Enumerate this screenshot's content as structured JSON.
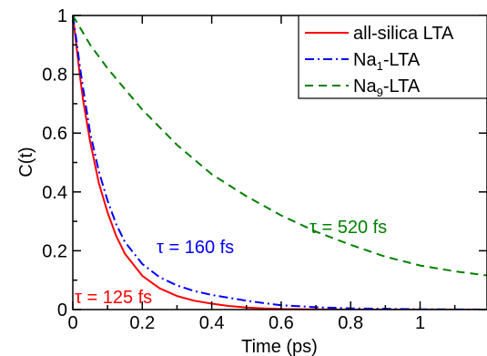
{
  "chart_data": {
    "type": "line",
    "xlabel": "Time (ps)",
    "ylabel": "C(t)",
    "xlim": [
      0,
      1.2
    ],
    "ylim": [
      0,
      1
    ],
    "xticks": [
      0,
      0.2,
      0.4,
      0.6,
      0.8,
      1
    ],
    "xtick_labels": [
      "0",
      "0.2",
      "0.4",
      "0.6",
      "0.8",
      "1"
    ],
    "yticks": [
      0,
      0.2,
      0.4,
      0.6,
      0.8,
      1
    ],
    "ytick_labels": [
      "0",
      "0.2",
      "0.4",
      "0.6",
      "0.8",
      "1"
    ],
    "grid": false,
    "legend_position": "top-right",
    "series": [
      {
        "name": "all-silica LTA",
        "legend_base": "all-silica LTA",
        "legend_sub": "",
        "legend_suffix": "",
        "color": "#ff0000",
        "dash": "solid",
        "annotation": "τ = 125 fs",
        "x": [
          0,
          0.01,
          0.02,
          0.03,
          0.05,
          0.075,
          0.1,
          0.125,
          0.15,
          0.2,
          0.25,
          0.3,
          0.35,
          0.4,
          0.45,
          0.5,
          0.55,
          0.6,
          0.7,
          0.8,
          1.0,
          1.2
        ],
        "y": [
          1.0,
          0.9,
          0.8,
          0.71,
          0.57,
          0.43,
          0.33,
          0.25,
          0.19,
          0.115,
          0.072,
          0.046,
          0.03,
          0.02,
          0.012,
          0.007,
          0.004,
          0.002,
          0.001,
          0.0,
          0.0,
          0.0
        ]
      },
      {
        "name": "Na1-LTA",
        "legend_base": "Na",
        "legend_sub": "1",
        "legend_suffix": "-LTA",
        "color": "#0000ff",
        "dash": "dashdot",
        "annotation": "τ = 160 fs",
        "x": [
          0,
          0.01,
          0.02,
          0.03,
          0.05,
          0.075,
          0.1,
          0.125,
          0.15,
          0.2,
          0.25,
          0.3,
          0.35,
          0.4,
          0.45,
          0.5,
          0.55,
          0.6,
          0.7,
          0.8,
          1.0,
          1.2
        ],
        "y": [
          1.0,
          0.92,
          0.83,
          0.75,
          0.6,
          0.47,
          0.37,
          0.29,
          0.23,
          0.155,
          0.11,
          0.082,
          0.063,
          0.05,
          0.04,
          0.03,
          0.022,
          0.015,
          0.008,
          0.004,
          0.001,
          0.0
        ]
      },
      {
        "name": "Na9-LTA",
        "legend_base": "Na",
        "legend_sub": "9",
        "legend_suffix": "-LTA",
        "color": "#008000",
        "dash": "dashed",
        "annotation": "τ = 520 fs",
        "x": [
          0,
          0.05,
          0.1,
          0.15,
          0.2,
          0.3,
          0.4,
          0.5,
          0.6,
          0.7,
          0.8,
          0.9,
          1.0,
          1.1,
          1.2
        ],
        "y": [
          1.0,
          0.9,
          0.82,
          0.75,
          0.68,
          0.56,
          0.46,
          0.385,
          0.32,
          0.265,
          0.22,
          0.18,
          0.15,
          0.13,
          0.115
        ]
      }
    ]
  }
}
